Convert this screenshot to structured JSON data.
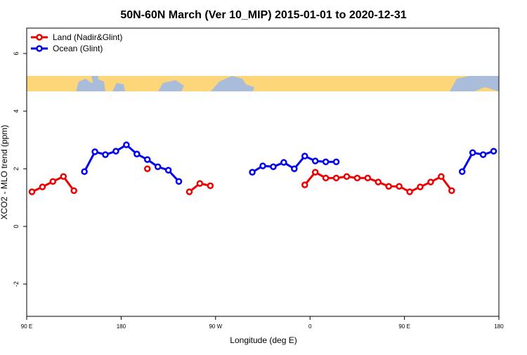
{
  "chart_data": {
    "type": "line",
    "title": "50N-60N March (Ver 10_MIP)   2015-01-01 to 2020-12-31",
    "xlabel": "Longitude (deg E)",
    "ylabel": "XCO2 - MLO trend (ppm)",
    "x": [
      95,
      105,
      115,
      125,
      135,
      145,
      155,
      165,
      175,
      185,
      195,
      205,
      215,
      225,
      235,
      245,
      255,
      265,
      275,
      285,
      295,
      305,
      315,
      325,
      335,
      345,
      355,
      365,
      375,
      385,
      395,
      405,
      415,
      425,
      435,
      445,
      455,
      465,
      475,
      485,
      495,
      505,
      515,
      525,
      535
    ],
    "series": [
      {
        "name": "Land (Nadir&Glint)",
        "color": "#ee0000",
        "values": [
          1.2,
          1.37,
          1.56,
          1.73,
          1.24,
          null,
          null,
          null,
          null,
          null,
          null,
          2.0,
          null,
          null,
          null,
          1.2,
          1.49,
          1.41,
          null,
          null,
          null,
          null,
          null,
          null,
          null,
          null,
          1.44,
          1.88,
          1.68,
          1.68,
          1.73,
          1.68,
          1.68,
          1.54,
          1.39,
          1.39,
          1.2,
          1.37,
          1.54,
          1.73,
          1.24,
          null,
          null,
          null,
          null
        ]
      },
      {
        "name": "Ocean (Glint)",
        "color": "#0000ee",
        "values": [
          null,
          null,
          null,
          null,
          null,
          1.9,
          2.59,
          2.49,
          2.61,
          2.83,
          2.51,
          2.32,
          2.07,
          1.95,
          1.56,
          null,
          null,
          null,
          null,
          null,
          null,
          1.88,
          2.1,
          2.07,
          2.22,
          2.0,
          2.44,
          2.27,
          2.24,
          2.24,
          null,
          null,
          null,
          null,
          null,
          null,
          null,
          null,
          null,
          null,
          null,
          1.9,
          2.56,
          2.49,
          2.61
        ]
      }
    ],
    "xlim": [
      90,
      540
    ],
    "xticks": [
      {
        "value": 90,
        "label": "90 E"
      },
      {
        "value": 180,
        "label": "180"
      },
      {
        "value": 270,
        "label": "90 W"
      },
      {
        "value": 360,
        "label": "0"
      },
      {
        "value": 450,
        "label": "90 E"
      },
      {
        "value": 540,
        "label": "180"
      }
    ],
    "ylim": [
      -3.12,
      6.88
    ],
    "yticks": [
      -2,
      0,
      2,
      4,
      6
    ],
    "legend": "topleft"
  }
}
